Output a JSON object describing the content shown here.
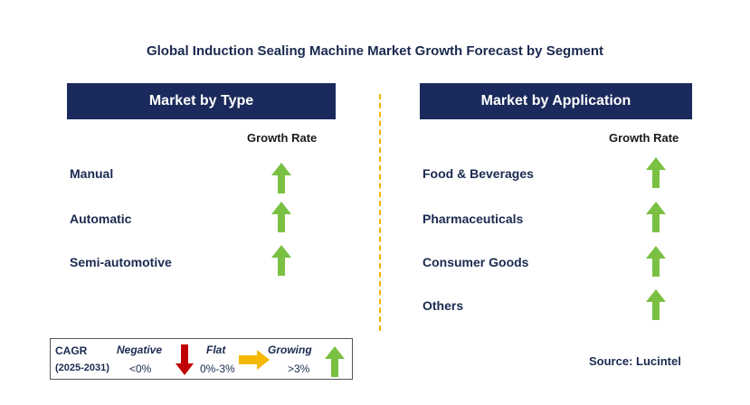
{
  "title": "Global Induction Sealing Machine Market Growth Forecast by Segment",
  "left_panel": {
    "header": "Market by Type",
    "growth_rate_label": "Growth Rate",
    "items": [
      {
        "label": "Manual",
        "trend": "growing"
      },
      {
        "label": "Automatic",
        "trend": "growing"
      },
      {
        "label": "Semi-automotive",
        "trend": "growing"
      }
    ]
  },
  "right_panel": {
    "header": "Market by Application",
    "growth_rate_label": "Growth Rate",
    "items": [
      {
        "label": "Food & Beverages",
        "trend": "growing"
      },
      {
        "label": "Pharmaceuticals",
        "trend": "growing"
      },
      {
        "label": "Consumer Goods",
        "trend": "growing"
      },
      {
        "label": "Others",
        "trend": "growing"
      }
    ]
  },
  "legend": {
    "cagr_label": "CAGR",
    "period": "(2025-2031)",
    "negative_label": "Negative",
    "negative_range": "<0%",
    "flat_label": "Flat",
    "flat_range": "0%-3%",
    "growing_label": "Growing",
    "growing_range": ">3%"
  },
  "source": "Source: Lucintel",
  "colors": {
    "header_bg": "#1b2a5c",
    "growing_arrow": "#7ac143",
    "negative_arrow": "#c00000",
    "flat_arrow": "#f5b800",
    "divider": "#f0b400"
  }
}
